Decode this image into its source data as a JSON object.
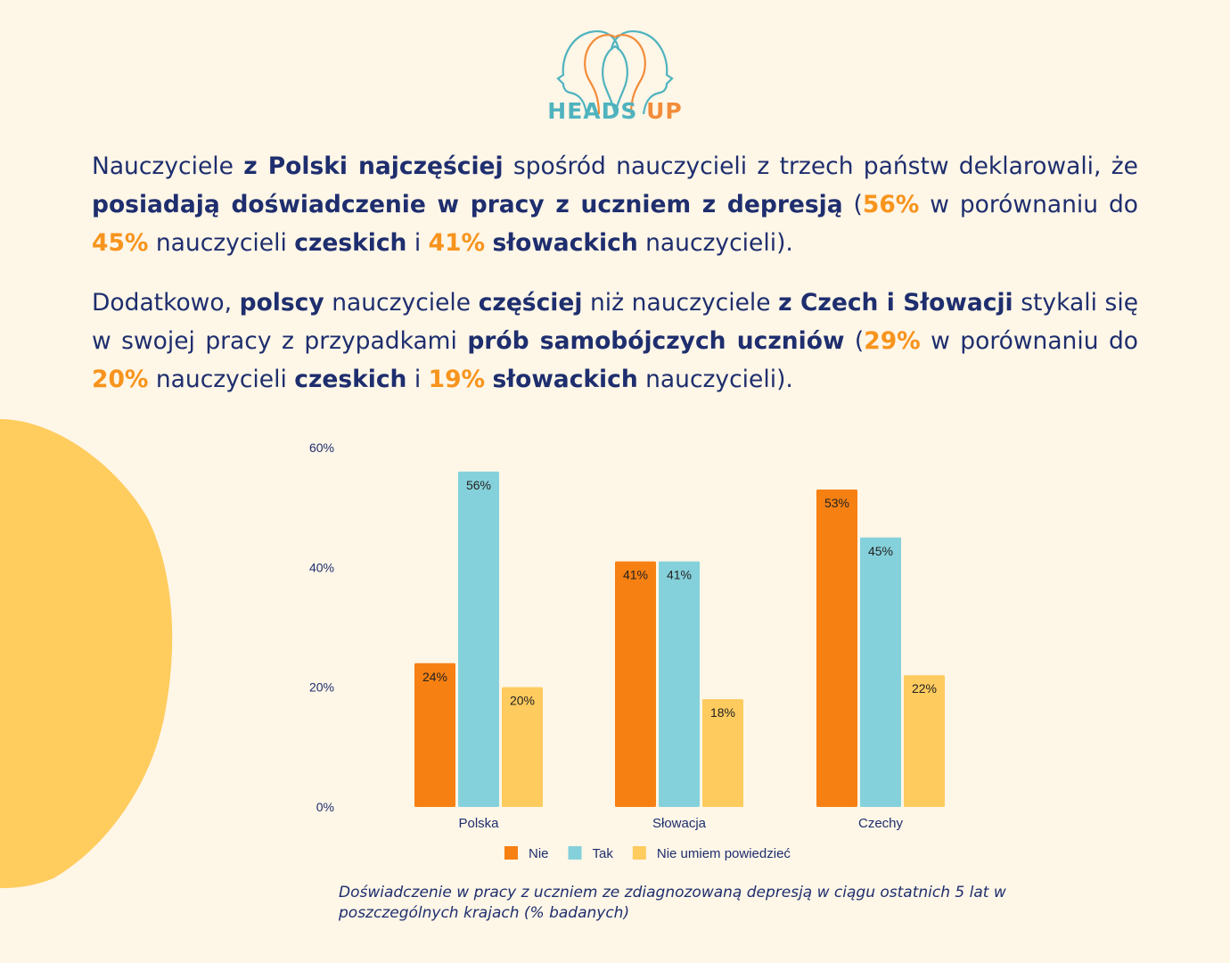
{
  "brand": {
    "part1": "HEADS",
    "part2": "UP"
  },
  "paragraph1": {
    "s1": "Nauczyciele ",
    "b1": "z Polski najczęściej",
    "s2": " spośród nauczycieli z trzech państw deklarowali, że ",
    "b2": "posiadają doświadczenie w pracy z uczniem z depresją",
    "s3": " (",
    "h1": "56%",
    "s4": " w porównaniu do ",
    "h2": "45%",
    "s5": " nauczycieli ",
    "b3": "czeskich",
    "s6": " i ",
    "h3": "41%",
    "s7": " ",
    "b4": "słowackich",
    "s8": " nauczycieli)."
  },
  "paragraph2": {
    "s1": "Dodatkowo, ",
    "b1": "polscy",
    "s2": " nauczyciele ",
    "b2": "częściej",
    "s3": " niż nauczyciele ",
    "b3": "z Czech i Słowacji",
    "s4": " stykali się w swojej pracy z przypadkami ",
    "b4": "prób samobójczych uczniów",
    "s5": " (",
    "h1": "29%",
    "s6": " w porównaniu do ",
    "h2": "20%",
    "s7": " nauczycieli ",
    "b5": "czeskich",
    "s8": " i ",
    "h3": "19%",
    "s9": " ",
    "b6": "słowackich",
    "s10": " nauczycieli)."
  },
  "chart_data": {
    "type": "bar",
    "categories": [
      "Polska",
      "Słowacja",
      "Czechy"
    ],
    "series": [
      {
        "name": "Nie",
        "color": "#F78012",
        "values": [
          24,
          41,
          53
        ]
      },
      {
        "name": "Tak",
        "color": "#85D1DB",
        "values": [
          56,
          41,
          45
        ]
      },
      {
        "name": "Nie umiem powiedzieć",
        "color": "#FECB5E",
        "values": [
          20,
          18,
          22
        ]
      }
    ],
    "yticks": [
      "0%",
      "20%",
      "40%",
      "60%"
    ],
    "ylim": [
      0,
      60
    ],
    "value_suffix": "%",
    "legend": "bottom"
  },
  "caption": "Doświadczenie w pracy z uczniem ze zdiagnozowaną depresją w ciągu ostatnich 5 lat w poszczególnych krajach (% badanych)",
  "colors": {
    "background": "#FEF6E7",
    "navy": "#1E2E6E",
    "orange": "#F7941D",
    "blob": "#FFCC5E"
  }
}
